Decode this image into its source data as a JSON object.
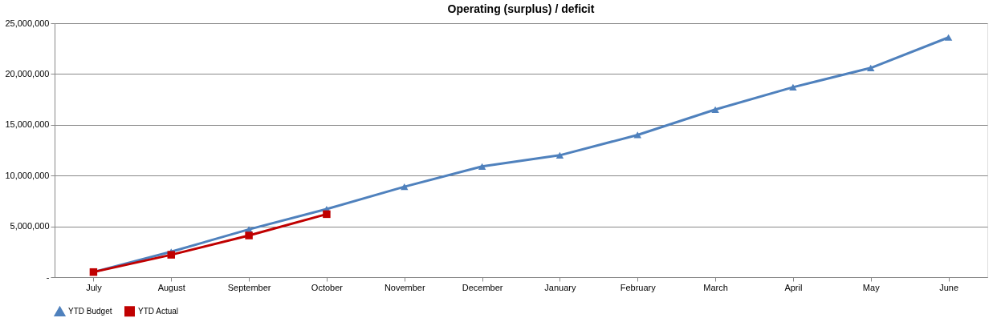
{
  "chart_data": {
    "type": "line",
    "title": "Operating (surplus) / deficit",
    "categories": [
      "July",
      "August",
      "September",
      "October",
      "November",
      "December",
      "January",
      "February",
      "March",
      "April",
      "May",
      "June"
    ],
    "series": [
      {
        "name": "YTD Budget",
        "color": "#4f81bd",
        "marker": "triangle",
        "values": [
          500000,
          2500000,
          4700000,
          6700000,
          8900000,
          10900000,
          12000000,
          14000000,
          16500000,
          18700000,
          20600000,
          23600000
        ]
      },
      {
        "name": "YTD Actual",
        "color": "#c00000",
        "marker": "square",
        "values": [
          500000,
          2200000,
          4100000,
          6200000,
          null,
          null,
          null,
          null,
          null,
          null,
          null,
          null
        ]
      }
    ],
    "ylim": [
      0,
      25000000
    ],
    "yticks": [
      {
        "value": 0,
        "label": "-"
      },
      {
        "value": 5000000,
        "label": "5,000,000"
      },
      {
        "value": 10000000,
        "label": "10,000,000"
      },
      {
        "value": 15000000,
        "label": "15,000,000"
      },
      {
        "value": 20000000,
        "label": "20,000,000"
      },
      {
        "value": 25000000,
        "label": "25,000,000"
      }
    ],
    "grid": "y",
    "legend": "bottom",
    "line_style": "solid"
  }
}
